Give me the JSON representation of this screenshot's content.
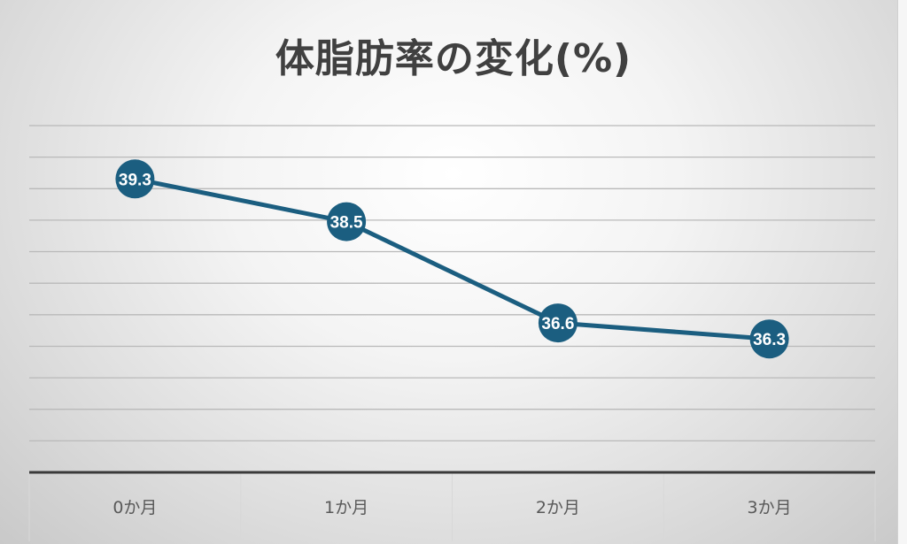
{
  "chart_data": {
    "type": "line",
    "title": "体脂肪率の変化(%)",
    "categories": [
      "0か月",
      "1か月",
      "2か月",
      "3か月"
    ],
    "series": [
      {
        "values": [
          39.3,
          38.5,
          36.6,
          36.3
        ],
        "color": "#1b5e80"
      }
    ],
    "data_labels": [
      "39.3",
      "38.5",
      "36.6",
      "36.3"
    ],
    "ylim": [
      33.8,
      40.3
    ],
    "grid": true,
    "legend": "none",
    "xlabel": "",
    "ylabel": ""
  }
}
